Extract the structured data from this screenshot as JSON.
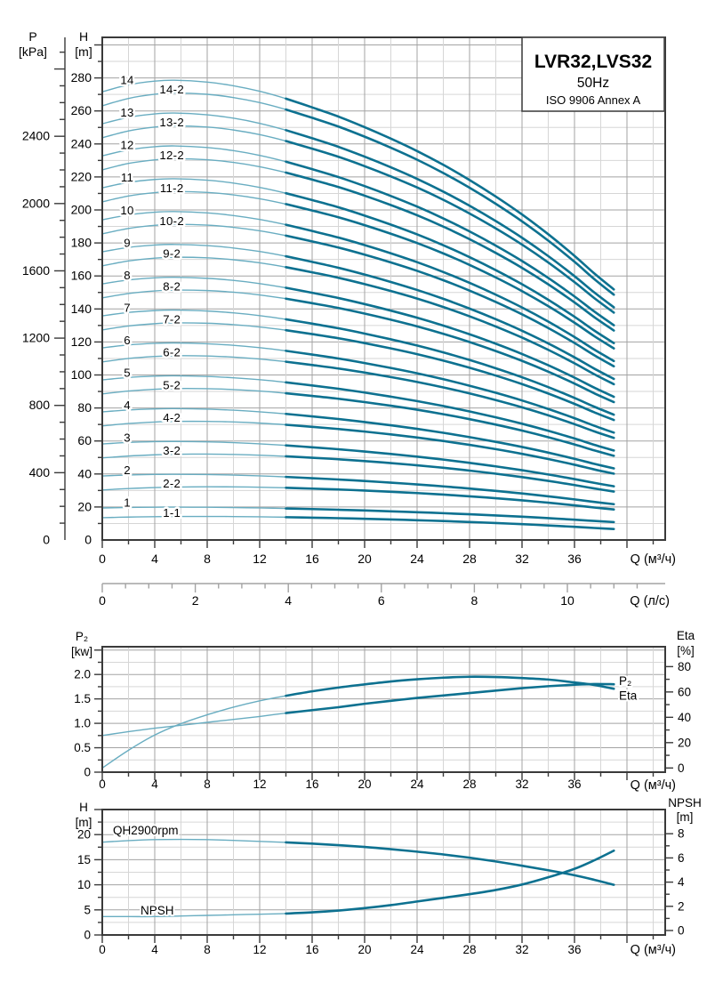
{
  "header": {
    "model": "LVR32,LVS32",
    "frequency": "50Hz",
    "standard": "ISO 9906 Annex A"
  },
  "colors": {
    "curve_dark": "#0d7190",
    "curve_light": "#69adc1",
    "grid_minor": "#d6d6d6",
    "grid_major": "#a3a3a3",
    "frame": "#3a3a3a",
    "text": "#000000",
    "label_halo": "#ffffff"
  },
  "chart_data": [
    {
      "id": "qh-family",
      "type": "line",
      "title": "LVR32,LVS32 50Hz ISO 9906 Annex A",
      "x_axis": {
        "label": "Q (м³/ч)",
        "tick_labels": [
          0,
          4,
          8,
          12,
          16,
          20,
          24,
          28,
          32,
          36
        ],
        "minor_step": 2,
        "min": 0,
        "max": 42.9
      },
      "x_axis_secondary": {
        "label": "Q (л/с)",
        "tick_labels": [
          0,
          2,
          4,
          6,
          8,
          10
        ],
        "minor_step": 0.5,
        "max": 11.5
      },
      "y_axis_head": {
        "label": "H",
        "unit": "[m]",
        "tick_labels": [
          0,
          20,
          40,
          60,
          80,
          100,
          120,
          140,
          160,
          180,
          200,
          220,
          240,
          260,
          280
        ],
        "minor_step": 10,
        "max": 300
      },
      "y_axis_pressure": {
        "label": "P",
        "unit": "[kPa]",
        "tick_labels": [
          0,
          400,
          800,
          1200,
          1600,
          2000,
          2400
        ],
        "minor_step": 100,
        "max": 2900,
        "kpa_per_m": 9.81
      },
      "flow_points": [
        0,
        2,
        4,
        5.5,
        8,
        10,
        12,
        14,
        16,
        18,
        20,
        22,
        24,
        26,
        28,
        30,
        32,
        34,
        36,
        37.5,
        39
      ],
      "head_fraction": [
        0.975,
        0.99,
        0.998,
        1.0,
        0.996,
        0.988,
        0.976,
        0.96,
        0.941,
        0.921,
        0.898,
        0.873,
        0.846,
        0.816,
        0.783,
        0.747,
        0.708,
        0.665,
        0.618,
        0.58,
        0.545
      ],
      "stages": [
        {
          "label": "1",
          "head_m": 19.9
        },
        {
          "label": "2",
          "head_m": 39.8
        },
        {
          "label": "3",
          "head_m": 59.7
        },
        {
          "label": "4",
          "head_m": 79.6
        },
        {
          "label": "5",
          "head_m": 99.5
        },
        {
          "label": "6",
          "head_m": 119.4
        },
        {
          "label": "7",
          "head_m": 139.3
        },
        {
          "label": "8",
          "head_m": 159.2
        },
        {
          "label": "9",
          "head_m": 179.1
        },
        {
          "label": "10",
          "head_m": 199.0
        },
        {
          "label": "11",
          "head_m": 218.9
        },
        {
          "label": "12",
          "head_m": 238.8
        },
        {
          "label": "13",
          "head_m": 258.7
        },
        {
          "label": "14",
          "head_m": 278.6
        }
      ],
      "trimmed_curves": [
        {
          "label": "1-1",
          "stage": 1,
          "drop_start_m": 5.9,
          "drop_end_m": 4.2
        },
        {
          "label": "2-2",
          "stage": 2,
          "drop_start_m": 8.5,
          "drop_end_m": 3.2
        },
        {
          "label": "3-2",
          "stage": 3,
          "drop_start_m": 8.5,
          "drop_end_m": 3.2
        },
        {
          "label": "4-2",
          "stage": 4,
          "drop_start_m": 8.5,
          "drop_end_m": 3.2
        },
        {
          "label": "5-2",
          "stage": 5,
          "drop_start_m": 8.5,
          "drop_end_m": 3.2
        },
        {
          "label": "6-2",
          "stage": 6,
          "drop_start_m": 8.5,
          "drop_end_m": 3.2
        },
        {
          "label": "7-2",
          "stage": 7,
          "drop_start_m": 8.5,
          "drop_end_m": 3.2
        },
        {
          "label": "8-2",
          "stage": 8,
          "drop_start_m": 8.5,
          "drop_end_m": 3.2
        },
        {
          "label": "9-2",
          "stage": 9,
          "drop_start_m": 8.5,
          "drop_end_m": 3.2
        },
        {
          "label": "10-2",
          "stage": 10,
          "drop_start_m": 8.5,
          "drop_end_m": 3.2
        },
        {
          "label": "11-2",
          "stage": 11,
          "drop_start_m": 8.5,
          "drop_end_m": 3.2
        },
        {
          "label": "12-2",
          "stage": 12,
          "drop_start_m": 8.5,
          "drop_end_m": 3.2
        },
        {
          "label": "13-2",
          "stage": 13,
          "drop_start_m": 8.5,
          "drop_end_m": 3.2
        },
        {
          "label": "14-2",
          "stage": 14,
          "drop_start_m": 8.5,
          "drop_end_m": 3.2
        }
      ]
    },
    {
      "id": "power-efficiency",
      "type": "line",
      "x_axis": {
        "label": "Q (м³/ч)",
        "tick_labels": [
          0,
          4,
          8,
          12,
          16,
          20,
          24,
          28,
          32,
          36
        ],
        "minor_step": 2,
        "min": 0,
        "max": 42.9
      },
      "y_axis_left": {
        "label": "P₂",
        "unit": "[kw]",
        "tick_labels": [
          "0",
          "0.5",
          "1.0",
          "1.5",
          "2.0"
        ],
        "minor_step": 0.25,
        "max": 2.5
      },
      "y_axis_right": {
        "label": "Eta",
        "unit": "[%]",
        "tick_labels": [
          0,
          20,
          40,
          60,
          80
        ],
        "minor_step": 10,
        "max": 80
      },
      "series": [
        {
          "name": "P₂",
          "axis": "left",
          "x": [
            0,
            2,
            4,
            6,
            8,
            10,
            12,
            14,
            16,
            18,
            20,
            22,
            24,
            26,
            28,
            30,
            32,
            34,
            36,
            37.5,
            39
          ],
          "values": [
            0.75,
            0.83,
            0.9,
            0.96,
            1.02,
            1.08,
            1.14,
            1.21,
            1.27,
            1.33,
            1.4,
            1.46,
            1.52,
            1.57,
            1.62,
            1.67,
            1.72,
            1.76,
            1.79,
            1.805,
            1.8
          ]
        },
        {
          "name": "Eta",
          "axis": "right",
          "x": [
            0,
            2,
            4,
            6,
            8,
            10,
            12,
            14,
            16,
            18,
            20,
            22,
            24,
            26,
            28,
            30,
            32,
            34,
            36,
            37.5,
            39
          ],
          "values": [
            0,
            14,
            26,
            35,
            42,
            48,
            53,
            57,
            60.5,
            63.5,
            66,
            68.3,
            70,
            71.3,
            72,
            71.8,
            71,
            69.8,
            67.5,
            65.5,
            62.5
          ]
        }
      ]
    },
    {
      "id": "qh2900-npsh",
      "type": "line",
      "x_axis": {
        "label": "Q (м³/ч)",
        "tick_labels": [
          0,
          4,
          8,
          12,
          16,
          20,
          24,
          28,
          32,
          36
        ],
        "minor_step": 2,
        "min": 0,
        "max": 42.9
      },
      "y_axis_left": {
        "label": "H",
        "unit": "[m]",
        "tick_labels": [
          0,
          5,
          10,
          15,
          20
        ],
        "minor_step": 2.5,
        "max": 25
      },
      "y_axis_right": {
        "label": "NPSH",
        "unit": "[m]",
        "tick_labels": [
          0,
          2,
          4,
          6,
          8
        ],
        "minor_step": 1,
        "max": 8
      },
      "series": [
        {
          "name": "QH2900rpm",
          "axis": "left",
          "x": [
            0,
            2,
            4,
            6,
            8,
            10,
            12,
            14,
            16,
            18,
            20,
            22,
            24,
            26,
            28,
            30,
            32,
            34,
            36,
            37.5,
            39
          ],
          "values": [
            18.5,
            18.8,
            19.0,
            19.05,
            19.0,
            18.85,
            18.65,
            18.45,
            18.2,
            17.9,
            17.55,
            17.1,
            16.6,
            16.05,
            15.4,
            14.65,
            13.8,
            12.9,
            11.9,
            11.0,
            10.0
          ]
        },
        {
          "name": "NPSH",
          "axis": "right",
          "x": [
            0,
            2,
            4,
            6,
            8,
            10,
            12,
            14,
            16,
            18,
            20,
            22,
            24,
            26,
            28,
            30,
            32,
            34,
            36,
            37.5,
            39
          ],
          "values": [
            1.15,
            1.15,
            1.15,
            1.2,
            1.25,
            1.3,
            1.35,
            1.4,
            1.5,
            1.65,
            1.85,
            2.1,
            2.4,
            2.7,
            3.0,
            3.35,
            3.8,
            4.4,
            5.1,
            5.8,
            6.6
          ]
        }
      ]
    }
  ]
}
